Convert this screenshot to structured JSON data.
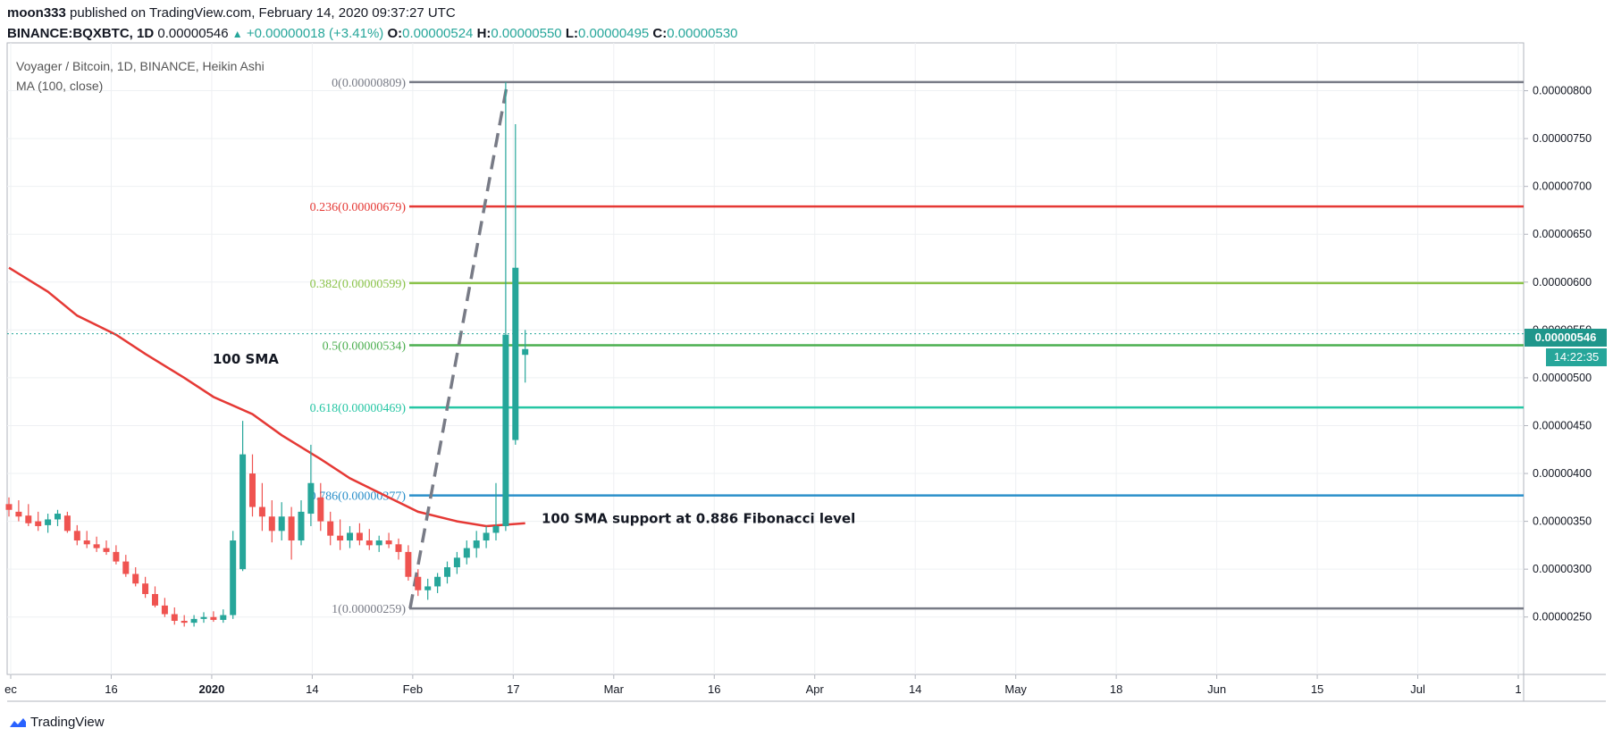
{
  "header": {
    "author": "moon333",
    "published_text": " published on TradingView.com, February 14, 2020 09:37:27 UTC",
    "symbol": "BINANCE:BQXBTC, 1D",
    "last": " 0.00000546 ",
    "change": "+0.00000018 (+3.41%)",
    "o_label": "O:",
    "o_value": "0.00000524",
    "h_label": "H:",
    "h_value": "0.00000550",
    "l_label": "L:",
    "l_value": "0.00000495",
    "c_label": "C:",
    "c_value": "0.00000530"
  },
  "legend": {
    "title": "Voyager / Bitcoin, 1D, BINANCE, Heikin Ashi",
    "indicator": "MA (100, close)"
  },
  "price_tag": {
    "price": "0.00000546",
    "countdown": "14:22:35"
  },
  "brand": "TradingView",
  "colors": {
    "up": "#26a69a",
    "down": "#ef5350",
    "ma": "#e53935",
    "grid": "#eef0f3",
    "axis": "#131722"
  },
  "chart_data": {
    "type": "candlestick",
    "title": "Voyager / Bitcoin, 1D, BINANCE, Heikin Ashi",
    "ylim": [
      1.9e-06,
      8.5e-06
    ],
    "y_ticks": [
      "0.00000250",
      "0.00000300",
      "0.00000350",
      "0.00000400",
      "0.00000450",
      "0.00000500",
      "0.00000550",
      "0.00000600",
      "0.00000650",
      "0.00000700",
      "0.00000750",
      "0.00000800"
    ],
    "x_ticks": [
      "ec",
      "16",
      "2020",
      "14",
      "Feb",
      "17",
      "Mar",
      "16",
      "Apr",
      "14",
      "May",
      "18",
      "Jun",
      "15",
      "Jul",
      "1"
    ],
    "fib_levels": [
      {
        "label": "0(0.00000809)",
        "ratio": 0,
        "price": 8.09e-06,
        "color": "#787b86"
      },
      {
        "label": "0.236(0.00000679)",
        "ratio": 0.236,
        "price": 6.79e-06,
        "color": "#e53935"
      },
      {
        "label": "0.382(0.00000599)",
        "ratio": 0.382,
        "price": 5.99e-06,
        "color": "#8bc34a"
      },
      {
        "label": "0.5(0.00000534)",
        "ratio": 0.5,
        "price": 5.34e-06,
        "color": "#4caf50"
      },
      {
        "label": "0.618(0.00000469)",
        "ratio": 0.618,
        "price": 4.69e-06,
        "color": "#26c6a4"
      },
      {
        "label": "0.786(0.00000377)",
        "ratio": 0.786,
        "price": 3.77e-06,
        "color": "#2a8fc9"
      },
      {
        "label": "1(0.00000259)",
        "ratio": 1,
        "price": 2.59e-06,
        "color": "#787b86"
      }
    ],
    "annotations": [
      {
        "text": "100 SMA",
        "anchor_price": 5.15e-06
      },
      {
        "text": "100 SMA support at 0.886 Fibonacci level",
        "anchor_price": 3.48e-06
      }
    ],
    "ma_label": "MA (100, close)",
    "ma": [
      6.15e-06,
      5.9e-06,
      5.65e-06,
      5.45e-06,
      5.25e-06,
      5e-06,
      4.8e-06,
      4.62e-06,
      4.4e-06,
      4.15e-06,
      3.95e-06,
      3.75e-06,
      3.6e-06,
      3.5e-06,
      3.45e-06,
      3.48e-06
    ],
    "candles": [
      [
        3.68e-06,
        3.75e-06,
        3.55e-06,
        3.62e-06
      ],
      [
        3.6e-06,
        3.72e-06,
        3.5e-06,
        3.55e-06
      ],
      [
        3.56e-06,
        3.68e-06,
        3.45e-06,
        3.48e-06
      ],
      [
        3.5e-06,
        3.6e-06,
        3.4e-06,
        3.45e-06
      ],
      [
        3.46e-06,
        3.58e-06,
        3.38e-06,
        3.52e-06
      ],
      [
        3.52e-06,
        3.62e-06,
        3.45e-06,
        3.58e-06
      ],
      [
        3.56e-06,
        3.6e-06,
        3.38e-06,
        3.4e-06
      ],
      [
        3.4e-06,
        3.46e-06,
        3.25e-06,
        3.3e-06
      ],
      [
        3.3e-06,
        3.4e-06,
        3.22e-06,
        3.26e-06
      ],
      [
        3.26e-06,
        3.34e-06,
        3.18e-06,
        3.22e-06
      ],
      [
        3.22e-06,
        3.3e-06,
        3.15e-06,
        3.18e-06
      ],
      [
        3.18e-06,
        3.25e-06,
        3.05e-06,
        3.08e-06
      ],
      [
        3.08e-06,
        3.15e-06,
        2.92e-06,
        2.95e-06
      ],
      [
        2.95e-06,
        3.02e-06,
        2.82e-06,
        2.85e-06
      ],
      [
        2.85e-06,
        2.92e-06,
        2.7e-06,
        2.74e-06
      ],
      [
        2.74e-06,
        2.82e-06,
        2.6e-06,
        2.62e-06
      ],
      [
        2.62e-06,
        2.7e-06,
        2.5e-06,
        2.53e-06
      ],
      [
        2.53e-06,
        2.6e-06,
        2.42e-06,
        2.46e-06
      ],
      [
        2.46e-06,
        2.52e-06,
        2.4e-06,
        2.44e-06
      ],
      [
        2.44e-06,
        2.52e-06,
        2.4e-06,
        2.48e-06
      ],
      [
        2.48e-06,
        2.55e-06,
        2.44e-06,
        2.5e-06
      ],
      [
        2.5e-06,
        2.56e-06,
        2.45e-06,
        2.47e-06
      ],
      [
        2.47e-06,
        2.58e-06,
        2.44e-06,
        2.52e-06
      ],
      [
        2.52e-06,
        3.4e-06,
        2.48e-06,
        3.3e-06
      ],
      [
        3e-06,
        4.55e-06,
        2.98e-06,
        4.2e-06
      ],
      [
        4e-06,
        4.2e-06,
        3.55e-06,
        3.65e-06
      ],
      [
        3.65e-06,
        3.9e-06,
        3.4e-06,
        3.55e-06
      ],
      [
        3.55e-06,
        3.72e-06,
        3.28e-06,
        3.4e-06
      ],
      [
        3.4e-06,
        3.7e-06,
        3.3e-06,
        3.55e-06
      ],
      [
        3.55e-06,
        3.65e-06,
        3.1e-06,
        3.3e-06
      ],
      [
        3.3e-06,
        3.72e-06,
        3.25e-06,
        3.6e-06
      ],
      [
        3.58e-06,
        4.3e-06,
        3.45e-06,
        3.9e-06
      ],
      [
        3.75e-06,
        3.9e-06,
        3.4e-06,
        3.5e-06
      ],
      [
        3.5e-06,
        3.6e-06,
        3.25e-06,
        3.35e-06
      ],
      [
        3.35e-06,
        3.52e-06,
        3.2e-06,
        3.3e-06
      ],
      [
        3.3e-06,
        3.45e-06,
        3.22e-06,
        3.38e-06
      ],
      [
        3.38e-06,
        3.48e-06,
        3.25e-06,
        3.3e-06
      ],
      [
        3.3e-06,
        3.42e-06,
        3.2e-06,
        3.25e-06
      ],
      [
        3.25e-06,
        3.35e-06,
        3.18e-06,
        3.3e-06
      ],
      [
        3.3e-06,
        3.38e-06,
        3.22e-06,
        3.26e-06
      ],
      [
        3.26e-06,
        3.32e-06,
        3.1e-06,
        3.18e-06
      ],
      [
        3.18e-06,
        3.25e-06,
        2.88e-06,
        2.92e-06
      ],
      [
        2.92e-06,
        3e-06,
        2.72e-06,
        2.78e-06
      ],
      [
        2.78e-06,
        2.9e-06,
        2.68e-06,
        2.82e-06
      ],
      [
        2.82e-06,
        2.96e-06,
        2.75e-06,
        2.92e-06
      ],
      [
        2.92e-06,
        3.08e-06,
        2.85e-06,
        3.02e-06
      ],
      [
        3.02e-06,
        3.18e-06,
        2.95e-06,
        3.12e-06
      ],
      [
        3.12e-06,
        3.3e-06,
        3.05e-06,
        3.22e-06
      ],
      [
        3.22e-06,
        3.4e-06,
        3.12e-06,
        3.3e-06
      ],
      [
        3.3e-06,
        3.45e-06,
        3.22e-06,
        3.38e-06
      ],
      [
        3.38e-06,
        3.9e-06,
        3.3e-06,
        3.45e-06
      ],
      [
        3.45e-06,
        8.09e-06,
        3.4e-06,
        5.45e-06
      ],
      [
        4.35e-06,
        7.65e-06,
        4.3e-06,
        6.15e-06
      ],
      [
        5.24e-06,
        5.5e-06,
        4.95e-06,
        5.3e-06
      ]
    ]
  }
}
